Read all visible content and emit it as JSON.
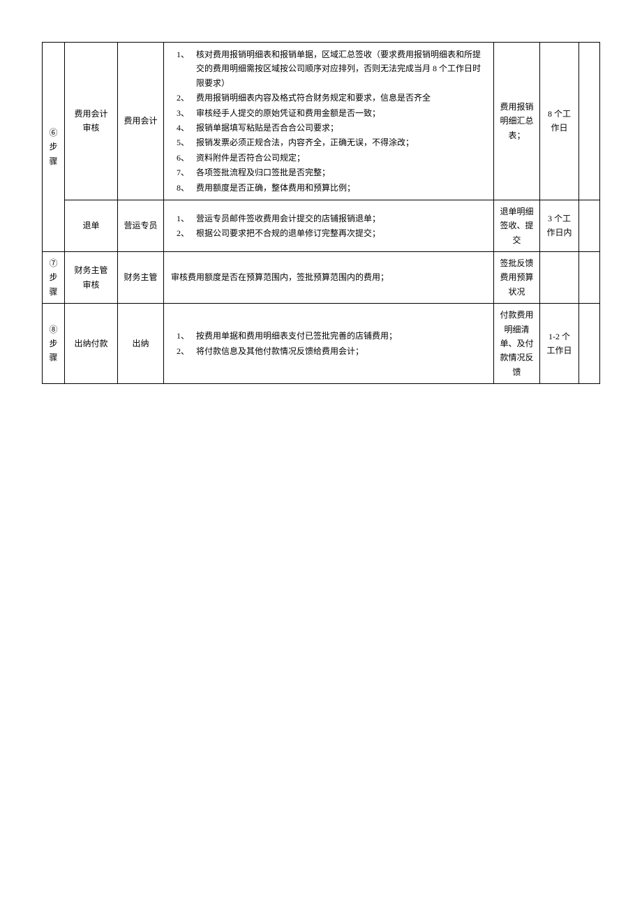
{
  "table": {
    "border_color": "#000000",
    "background_color": "#ffffff",
    "font_size": 12,
    "rows": [
      {
        "step": "⑥步骤",
        "step_rowspan": 2,
        "name": "费用会计审核",
        "role": "费用会计",
        "details": [
          "核对费用报销明细表和报销单据，区域汇总签收（要求费用报销明细表和所提交的费用明细需按区域按公司顺序对应排列，否则无法完成当月 8 个工作日时限要求）",
          "费用报销明细表内容及格式符合财务规定和要求，信息是否齐全",
          "审核经手人提交的原始凭证和费用金额是否一致；",
          "报销单据填写粘贴是否合合公司要求；",
          "报销发票必须正规合法，内容齐全，正确无误，不得涂改；",
          "资料附件是否符合公司规定；",
          "各项签批流程及归口签批是否完整；",
          "费用额度是否正确，整体费用和预算比例；"
        ],
        "output": "费用报销明细汇总表；",
        "time": "8 个工作日",
        "last": ""
      },
      {
        "step": "",
        "name": "退单",
        "role": "营运专员",
        "details": [
          "营运专员邮件签收费用会计提交的店铺报销退单；",
          "根据公司要求把不合规的退单修订完整再次提交；"
        ],
        "output": "退单明细签收、提交",
        "time": "3 个工作日内",
        "last": ""
      },
      {
        "step": "⑦步骤",
        "name": "财务主管审核",
        "role": "财务主管",
        "details_text": "审核费用额度是否在预算范围内，签批预算范围内的费用；",
        "output": "签批反馈费用预算状况",
        "time": "",
        "last": ""
      },
      {
        "step": "⑧步骤",
        "name": "出纳付款",
        "role": "出纳",
        "details": [
          "按费用单据和费用明细表支付已签批完善的店铺费用；",
          "将付款信息及其他付款情况反馈给费用会计；"
        ],
        "output": "付款费用明细清单、及付款情况反馈",
        "time": "1-2 个工作日",
        "last": ""
      }
    ]
  }
}
